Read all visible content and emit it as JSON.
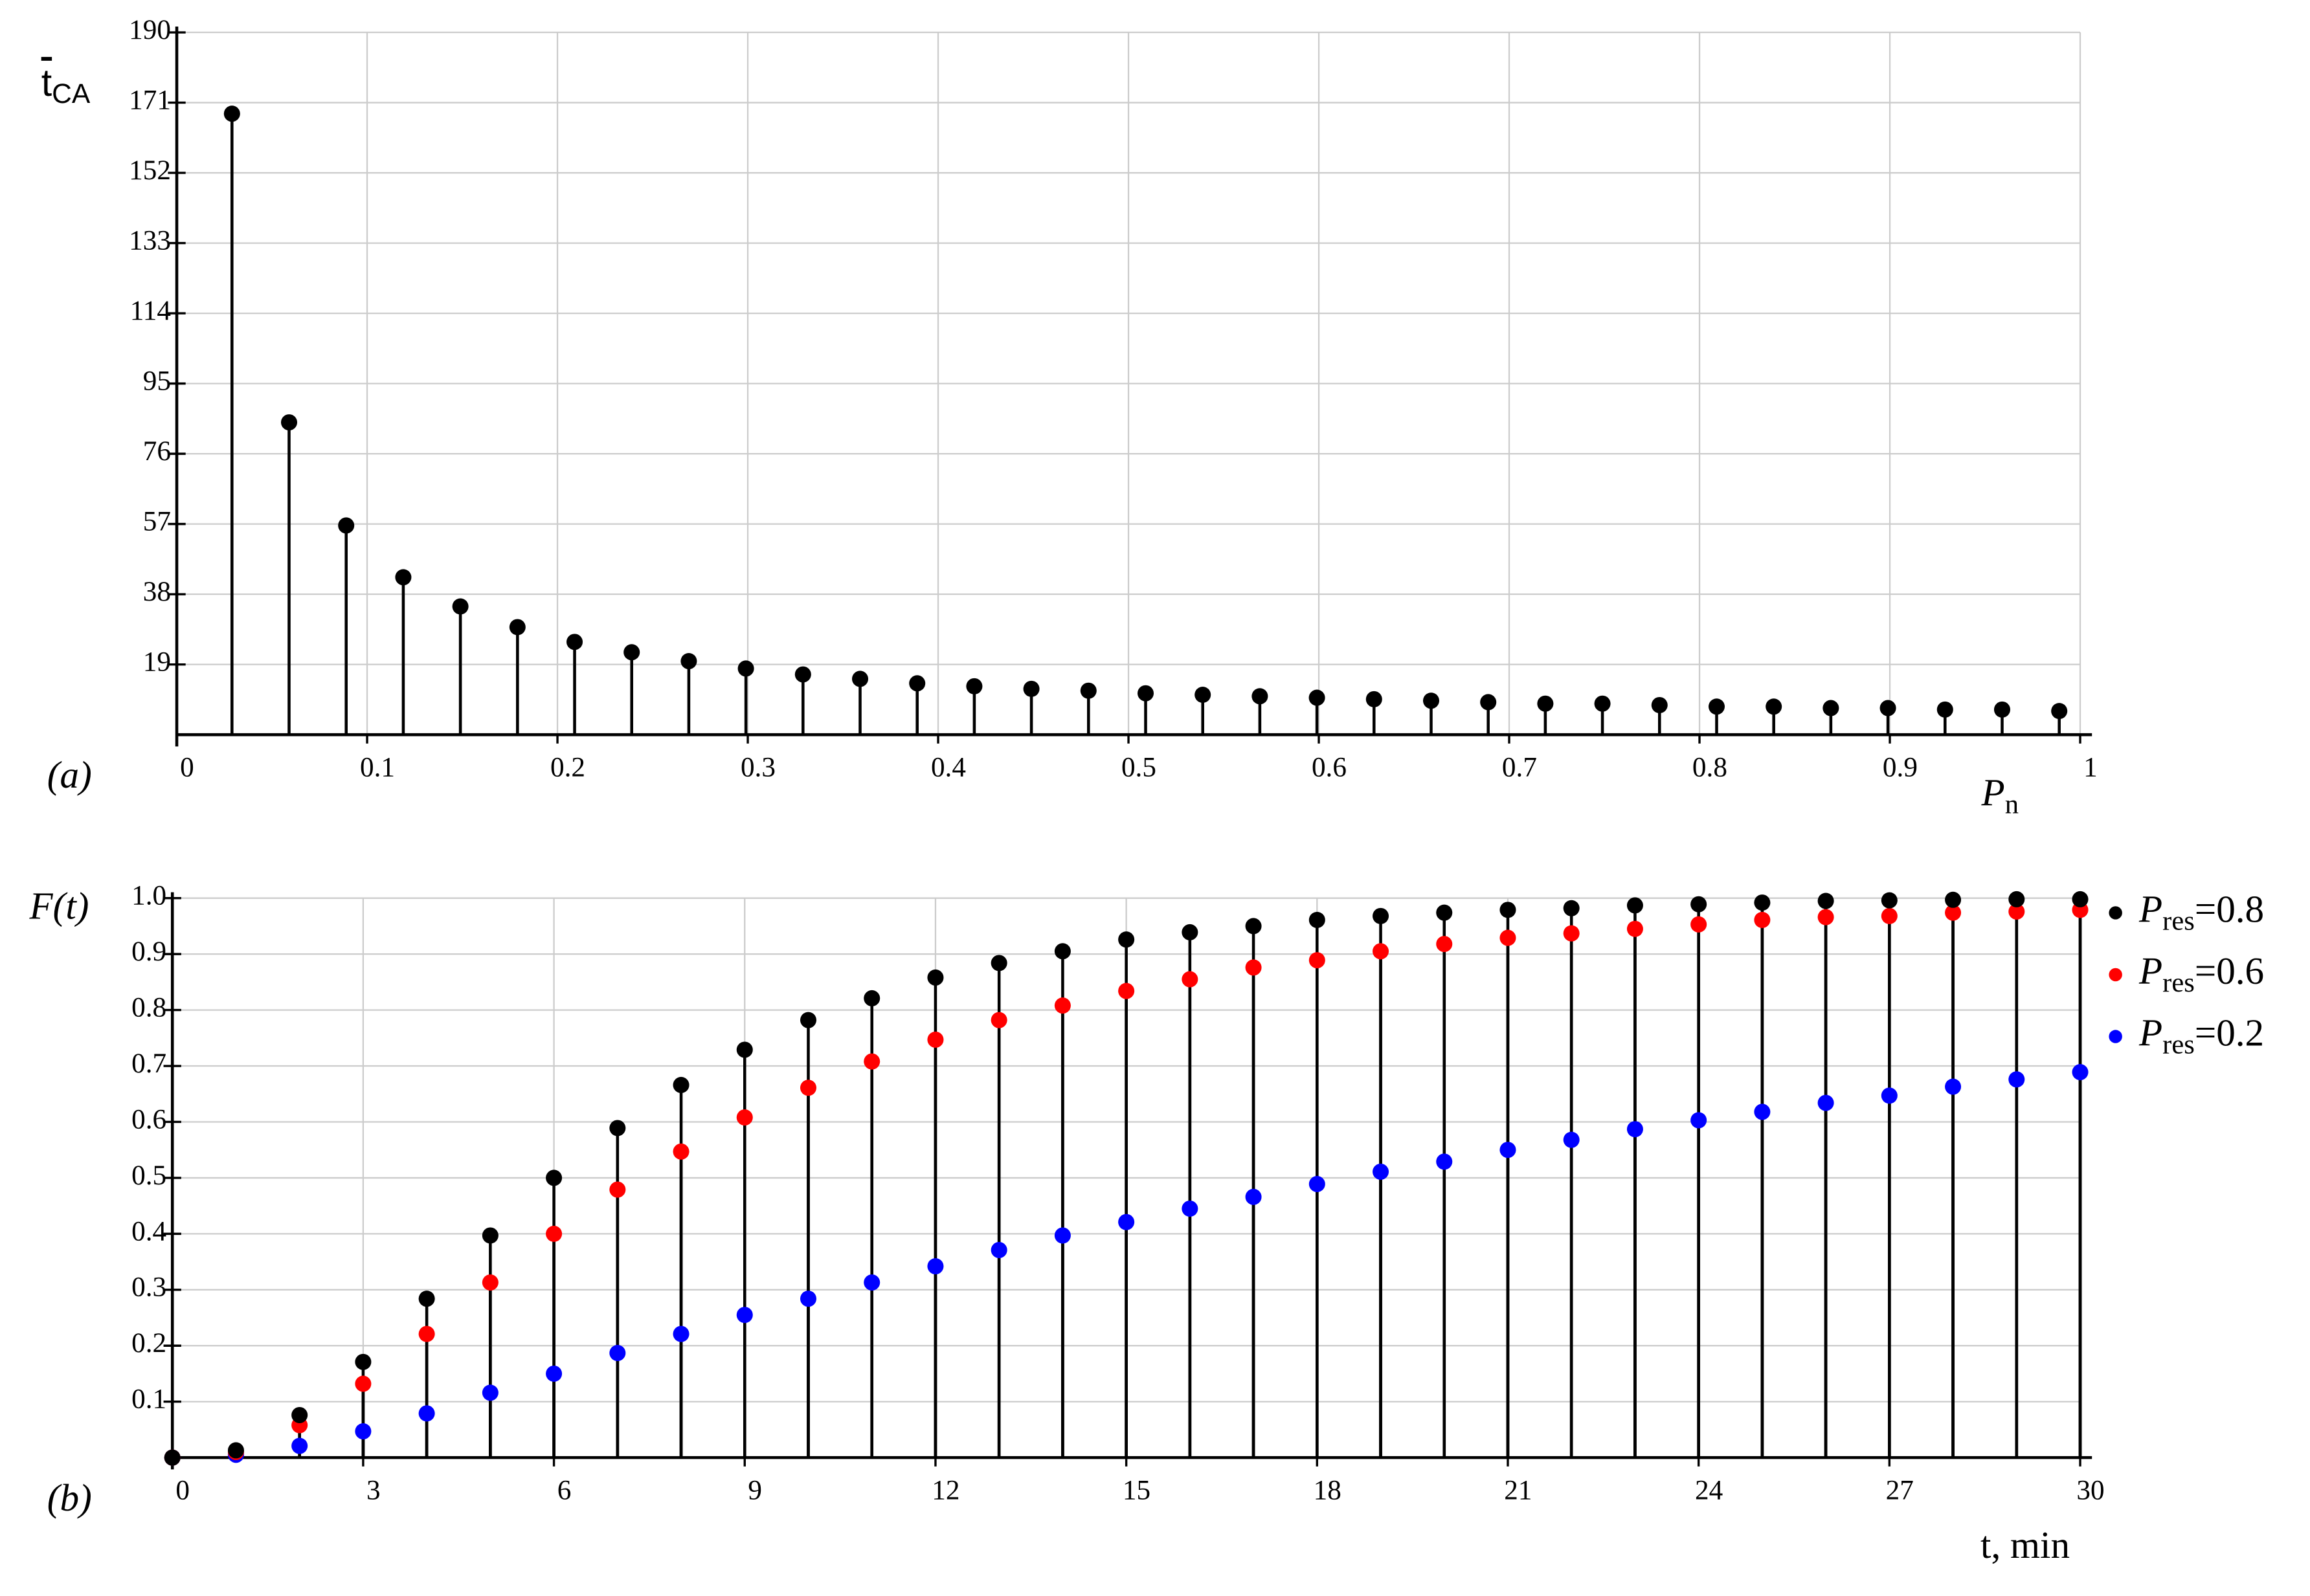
{
  "chart_data": [
    {
      "type": "stem",
      "panel_label": "(a)",
      "y_label": "tCA",
      "x_label": "Pn",
      "color": "#000000",
      "grid": true,
      "xlim": [
        0,
        1
      ],
      "xticks": [
        0,
        0.1,
        0.2,
        0.3,
        0.4,
        0.5,
        0.6,
        0.7,
        0.8,
        0.9,
        1
      ],
      "ylim": [
        0,
        190
      ],
      "yticks": [
        19,
        38,
        57,
        76,
        95,
        114,
        133,
        152,
        171,
        190
      ],
      "x": [
        0.029,
        0.059,
        0.089,
        0.119,
        0.149,
        0.179,
        0.209,
        0.239,
        0.269,
        0.299,
        0.329,
        0.359,
        0.389,
        0.419,
        0.449,
        0.479,
        0.509,
        0.539,
        0.569,
        0.599,
        0.629,
        0.659,
        0.689,
        0.719,
        0.749,
        0.779,
        0.809,
        0.839,
        0.869,
        0.899,
        0.929,
        0.959,
        0.989
      ],
      "values": [
        168,
        84.5,
        56.6,
        42.6,
        34.7,
        29.1,
        25.1,
        22.3,
        19.9,
        17.9,
        16.3,
        15.1,
        13.9,
        13.1,
        12.4,
        11.9,
        11.2,
        10.8,
        10.4,
        10,
        9.6,
        9.2,
        8.8,
        8.4,
        8.4,
        8,
        7.6,
        7.6,
        7.2,
        7.2,
        6.8,
        6.8,
        6.4
      ]
    },
    {
      "type": "stem",
      "panel_label": "(b)",
      "y_label": "F(t)",
      "x_label": "t, min",
      "grid": true,
      "legend": "right",
      "xlim": [
        0,
        30
      ],
      "xticks": [
        0,
        3,
        6,
        9,
        12,
        15,
        18,
        21,
        24,
        27,
        30
      ],
      "ylim": [
        0,
        1
      ],
      "yticks": [
        0.1,
        0.2,
        0.3,
        0.4,
        0.5,
        0.6,
        0.7,
        0.8,
        0.9,
        {
          "value": 1,
          "label": "1.0"
        }
      ],
      "x": [
        0,
        1,
        2,
        3,
        4,
        5,
        6,
        7,
        8,
        9,
        10,
        11,
        12,
        13,
        14,
        15,
        16,
        17,
        18,
        19,
        20,
        21,
        22,
        23,
        24,
        25,
        26,
        27,
        28,
        29,
        30
      ],
      "series": [
        {
          "name": "Pres=0.8",
          "color": "#000000",
          "values": [
            0,
            0.013,
            0.076,
            0.171,
            0.284,
            0.397,
            0.5,
            0.589,
            0.666,
            0.729,
            0.782,
            0.821,
            0.858,
            0.884,
            0.905,
            0.926,
            0.939,
            0.95,
            0.961,
            0.968,
            0.974,
            0.979,
            0.982,
            0.987,
            0.989,
            0.992,
            0.995,
            0.996,
            0.997,
            0.998,
            0.998
          ]
        },
        {
          "name": "Pres=0.6",
          "color": "#ff0000",
          "values": [
            0,
            0.01,
            0.058,
            0.132,
            0.221,
            0.313,
            0.4,
            0.479,
            0.547,
            0.608,
            0.661,
            0.708,
            0.747,
            0.782,
            0.808,
            0.834,
            0.855,
            0.876,
            0.889,
            0.905,
            0.918,
            0.929,
            0.937,
            0.945,
            0.953,
            0.961,
            0.966,
            0.968,
            0.974,
            0.976,
            0.979
          ]
        },
        {
          "name": "Pres=0.2",
          "color": "#0000ff",
          "values": [
            0,
            0.005,
            0.021,
            0.047,
            0.079,
            0.116,
            0.15,
            0.187,
            0.221,
            0.255,
            0.284,
            0.313,
            0.342,
            0.371,
            0.397,
            0.421,
            0.445,
            0.466,
            0.489,
            0.511,
            0.529,
            0.55,
            0.568,
            0.587,
            0.603,
            0.618,
            0.634,
            0.647,
            0.663,
            0.676,
            0.689
          ]
        }
      ]
    }
  ]
}
